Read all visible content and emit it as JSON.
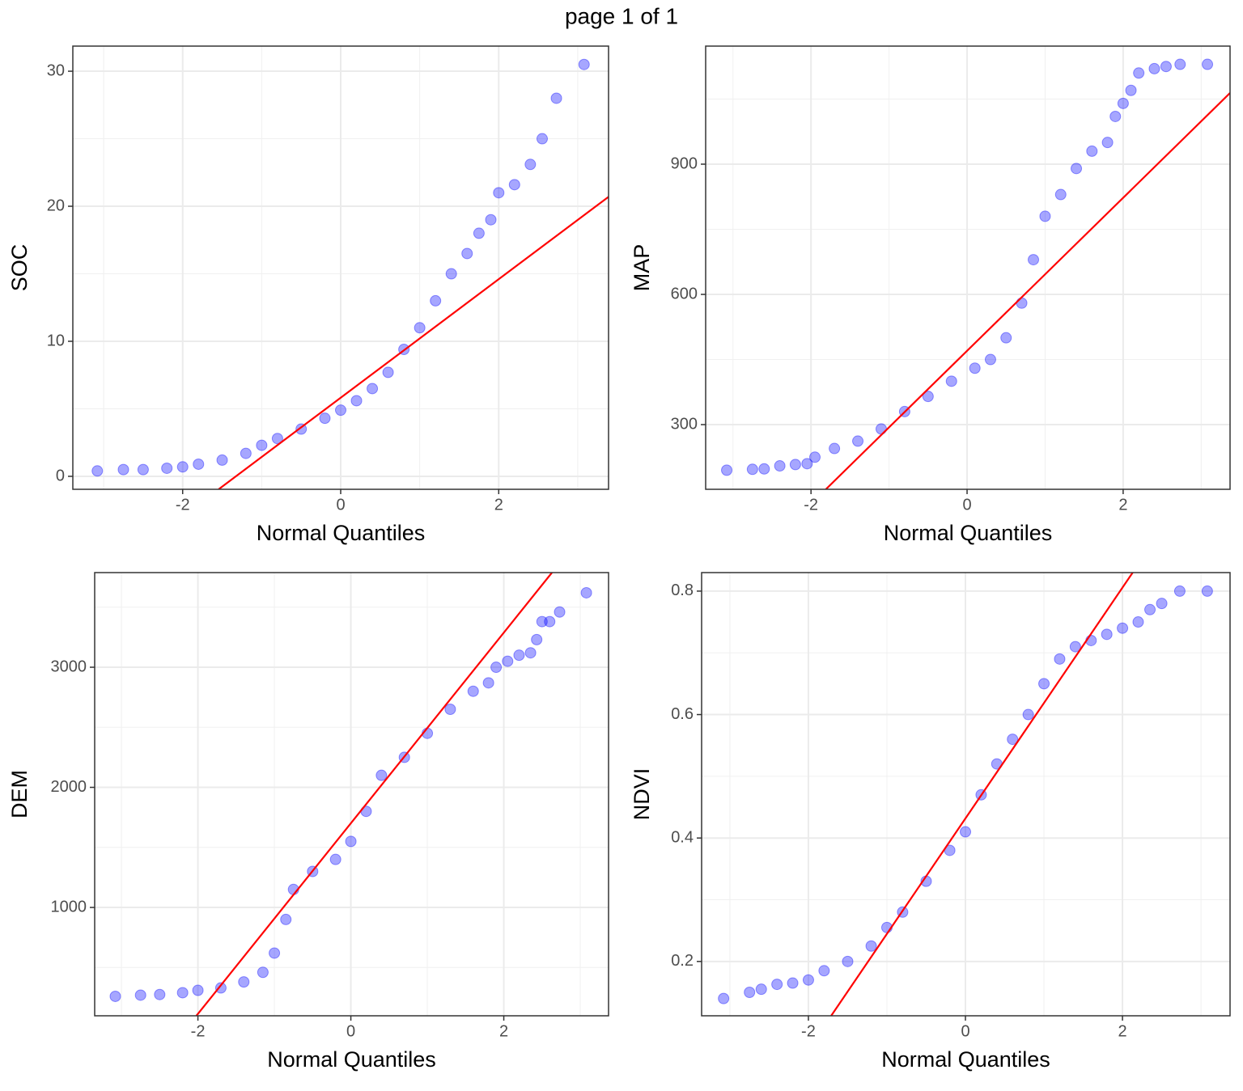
{
  "title": "page 1 of 1",
  "chart_data": [
    {
      "type": "scatter",
      "xlabel": "Normal Quantiles",
      "ylabel": "SOC",
      "xlim": [
        -3.39,
        3.39
      ],
      "ylim": [
        -0.96,
        31.86
      ],
      "xticks": [
        -2,
        0,
        2
      ],
      "yticks": [
        0,
        10,
        20,
        30
      ],
      "minor_xticks": [
        -3,
        -1,
        1,
        3
      ],
      "minor_yticks": [
        5,
        15,
        25
      ],
      "grid": true,
      "color": "#0000ff",
      "x": [
        -3.08,
        -2.75,
        -2.5,
        -2.2,
        -2,
        -1.8,
        -1.5,
        -1.2,
        -1,
        -0.8,
        -0.5,
        -0.2,
        0,
        0.2,
        0.4,
        0.6,
        0.8,
        1,
        1.2,
        1.4,
        1.6,
        1.75,
        1.9,
        2,
        2.2,
        2.4,
        2.55,
        2.73,
        3.08
      ],
      "values": [
        0.4,
        0.5,
        0.5,
        0.6,
        0.7,
        0.9,
        1.2,
        1.7,
        2.3,
        2.8,
        3.5,
        4.3,
        4.9,
        5.6,
        6.5,
        7.7,
        9.4,
        11,
        13,
        15,
        16.5,
        18,
        19,
        21,
        21.6,
        23.1,
        25,
        28,
        30.5
      ],
      "reference_line": {
        "color": "#ff0000",
        "x": [
          -1.545,
          3.39
        ],
        "values": [
          -0.96,
          20.7
        ]
      }
    },
    {
      "type": "scatter",
      "xlabel": "Normal Quantiles",
      "ylabel": "MAP",
      "xlim": [
        -3.35,
        3.37
      ],
      "ylim": [
        151,
        1172
      ],
      "xticks": [
        -2,
        0,
        2
      ],
      "yticks": [
        300,
        600,
        900
      ],
      "minor_xticks": [
        -3,
        -1,
        1,
        3
      ],
      "minor_yticks": [
        450,
        750,
        1050
      ],
      "grid": true,
      "color": "#0000ff",
      "x": [
        -3.08,
        -2.75,
        -2.6,
        -2.4,
        -2.2,
        -2.05,
        -1.95,
        -1.7,
        -1.4,
        -1.1,
        -0.8,
        -0.5,
        -0.2,
        0.1,
        0.3,
        0.5,
        0.7,
        0.85,
        1,
        1.2,
        1.4,
        1.6,
        1.8,
        1.9,
        2,
        2.1,
        2.2,
        2.4,
        2.55,
        2.73,
        3.08
      ],
      "values": [
        195,
        197,
        198,
        205,
        208,
        210,
        225,
        245,
        262,
        290,
        330,
        365,
        400,
        430,
        450,
        500,
        580,
        680,
        780,
        830,
        890,
        930,
        950,
        1010,
        1040,
        1070,
        1110,
        1120,
        1125,
        1130,
        1130
      ],
      "reference_line": {
        "color": "#ff0000",
        "x": [
          -1.81,
          3.37
        ],
        "values": [
          151,
          1064
        ]
      }
    },
    {
      "type": "scatter",
      "xlabel": "Normal Quantiles",
      "ylabel": "DEM",
      "xlim": [
        -3.35,
        3.37
      ],
      "ylim": [
        98,
        3788
      ],
      "xticks": [
        -2,
        0,
        2
      ],
      "yticks": [
        1000,
        2000,
        3000
      ],
      "minor_xticks": [
        -3,
        -1,
        1,
        3
      ],
      "minor_yticks": [
        500,
        1500,
        2500,
        3500
      ],
      "grid": true,
      "color": "#0000ff",
      "x": [
        -3.08,
        -2.75,
        -2.5,
        -2.2,
        -2,
        -1.7,
        -1.4,
        -1.15,
        -1,
        -0.85,
        -0.75,
        -0.5,
        -0.2,
        0,
        0.2,
        0.4,
        0.7,
        1,
        1.3,
        1.6,
        1.8,
        1.9,
        2.05,
        2.2,
        2.35,
        2.43,
        2.5,
        2.6,
        2.73,
        3.08
      ],
      "values": [
        260,
        270,
        275,
        290,
        310,
        330,
        380,
        460,
        620,
        900,
        1150,
        1300,
        1400,
        1550,
        1800,
        2100,
        2250,
        2450,
        2650,
        2800,
        2870,
        3000,
        3050,
        3100,
        3120,
        3230,
        3380,
        3380,
        3460,
        3620
      ],
      "reference_line": {
        "color": "#ff0000",
        "x": [
          -2.02,
          2.63
        ],
        "values": [
          98,
          3788
        ]
      }
    },
    {
      "type": "scatter",
      "xlabel": "Normal Quantiles",
      "ylabel": "NDVI",
      "xlim": [
        -3.36,
        3.37
      ],
      "ylim": [
        0.112,
        0.83
      ],
      "xticks": [
        -2,
        0,
        2
      ],
      "yticks": [
        0.2,
        0.4,
        0.6,
        0.8
      ],
      "minor_xticks": [
        -3,
        -1,
        1,
        3
      ],
      "minor_yticks": [
        0.3,
        0.5,
        0.7
      ],
      "grid": true,
      "color": "#0000ff",
      "x": [
        -3.08,
        -2.75,
        -2.6,
        -2.4,
        -2.2,
        -2,
        -1.8,
        -1.5,
        -1.2,
        -1,
        -0.8,
        -0.5,
        -0.2,
        0,
        0.2,
        0.4,
        0.6,
        0.8,
        1,
        1.2,
        1.4,
        1.6,
        1.8,
        2,
        2.2,
        2.35,
        2.5,
        2.73,
        3.08
      ],
      "values": [
        0.14,
        0.15,
        0.155,
        0.163,
        0.165,
        0.17,
        0.185,
        0.2,
        0.225,
        0.255,
        0.28,
        0.33,
        0.38,
        0.41,
        0.47,
        0.52,
        0.56,
        0.6,
        0.65,
        0.69,
        0.71,
        0.72,
        0.73,
        0.74,
        0.75,
        0.77,
        0.78,
        0.8,
        0.8
      ],
      "reference_line": {
        "color": "#ff0000",
        "x": [
          -1.71,
          2.13
        ],
        "values": [
          0.112,
          0.83
        ]
      }
    }
  ]
}
